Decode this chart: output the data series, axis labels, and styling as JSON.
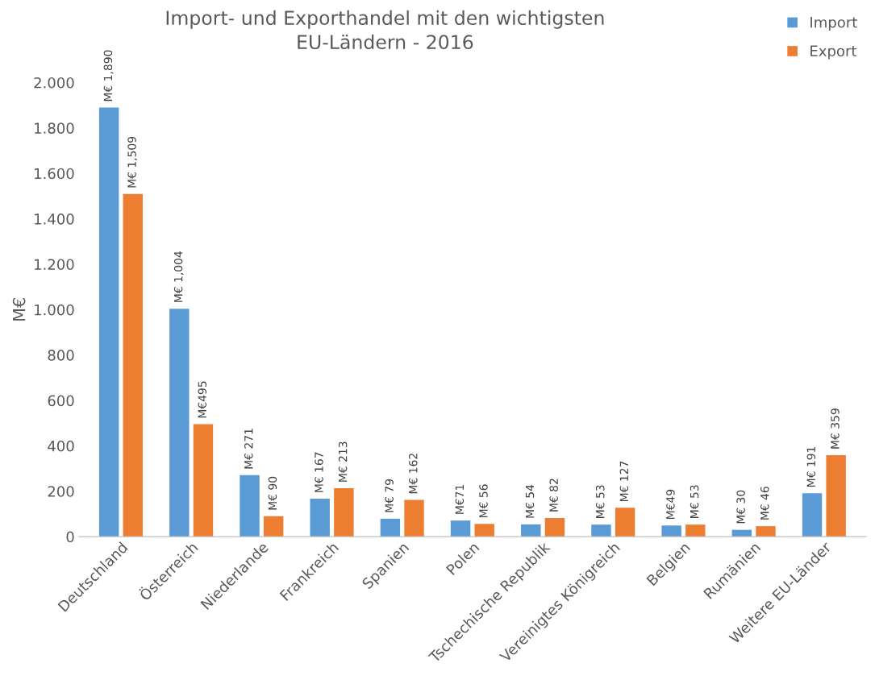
{
  "chart_data": {
    "type": "bar",
    "title": "Import- und Exporthandel mit den wichtigsten\nEU-Ländern - 2016",
    "ylabel": "M€",
    "categories": [
      "Deutschland",
      "Österreich",
      "Niederlande",
      "Frankreich",
      "Spanien",
      "Polen",
      "Tschechische Republik",
      "Vereinigtes Königreich",
      "Belgien",
      "Rumänien",
      "Weitere EU-Länder"
    ],
    "series": [
      {
        "name": "Import",
        "color": "#5b9bd5",
        "values": [
          1890,
          1004,
          271,
          167,
          79,
          71,
          54,
          53,
          49,
          30,
          191
        ],
        "value_labels": [
          "M€ 1,890",
          "M€ 1,004",
          "M€ 271",
          "M€ 167",
          "M€ 79",
          "M€71",
          "M€ 54",
          "M€ 53",
          "M€49",
          "M€ 30",
          "M€ 191"
        ]
      },
      {
        "name": "Export",
        "color": "#ed7d31",
        "values": [
          1509,
          495,
          90,
          213,
          162,
          56,
          82,
          127,
          53,
          46,
          359
        ],
        "value_labels": [
          "M€ 1,509",
          "M€495",
          "M€ 90",
          "M€ 213",
          "M€ 162",
          "M€ 56",
          "M€ 82",
          "M€ 127",
          "M€ 53",
          "M€ 46",
          "M€ 359"
        ]
      }
    ],
    "ylim": [
      0,
      2000
    ],
    "yticks": [
      0,
      {
        "value": 200,
        "label": "200"
      },
      {
        "value": 400,
        "label": "400"
      },
      {
        "value": 600,
        "label": "600"
      },
      {
        "value": 800,
        "label": "800"
      },
      {
        "value": 1000,
        "label": "1.000"
      },
      {
        "value": 1200,
        "label": "1.200"
      },
      {
        "value": 1400,
        "label": "1.400"
      },
      {
        "value": 1600,
        "label": "1.600"
      },
      {
        "value": 1800,
        "label": "1.800"
      },
      {
        "value": 2000,
        "label": "2.000"
      }
    ],
    "grid": false,
    "legend": "top right"
  }
}
